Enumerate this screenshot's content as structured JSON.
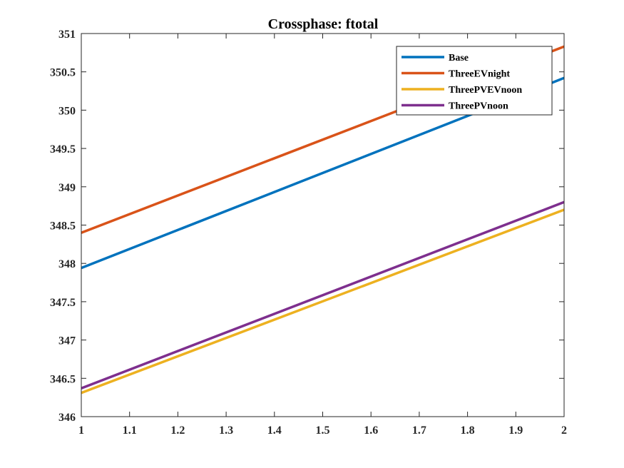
{
  "chart_data": {
    "type": "line",
    "title": "Crossphase: ftotal",
    "xlabel": "",
    "ylabel": "",
    "xlim": [
      1,
      2
    ],
    "ylim": [
      346,
      351
    ],
    "xticks": [
      1,
      1.1,
      1.2,
      1.3,
      1.4,
      1.5,
      1.6,
      1.7,
      1.8,
      1.9,
      2
    ],
    "xtick_labels": [
      "1",
      "1.1",
      "1.2",
      "1.3",
      "1.4",
      "1.5",
      "1.6",
      "1.7",
      "1.8",
      "1.9",
      "2"
    ],
    "yticks": [
      346,
      346.5,
      347,
      347.5,
      348,
      348.5,
      349,
      349.5,
      350,
      350.5,
      351
    ],
    "ytick_labels": [
      "346",
      "346.5",
      "347",
      "347.5",
      "348",
      "348.5",
      "349",
      "349.5",
      "350",
      "350.5",
      "351"
    ],
    "grid": false,
    "legend_position": "top-right",
    "series": [
      {
        "name": "Base",
        "color": "#0072BD",
        "x": [
          1,
          2
        ],
        "y": [
          347.94,
          350.42
        ]
      },
      {
        "name": "ThreeEVnight",
        "color": "#D95319",
        "x": [
          1,
          2
        ],
        "y": [
          348.4,
          350.83
        ]
      },
      {
        "name": "ThreePVEVnoon",
        "color": "#EDB120",
        "x": [
          1,
          2
        ],
        "y": [
          346.31,
          348.7
        ]
      },
      {
        "name": "ThreePVnoon",
        "color": "#7E2F8E",
        "x": [
          1,
          2
        ],
        "y": [
          346.37,
          348.8
        ]
      }
    ]
  }
}
